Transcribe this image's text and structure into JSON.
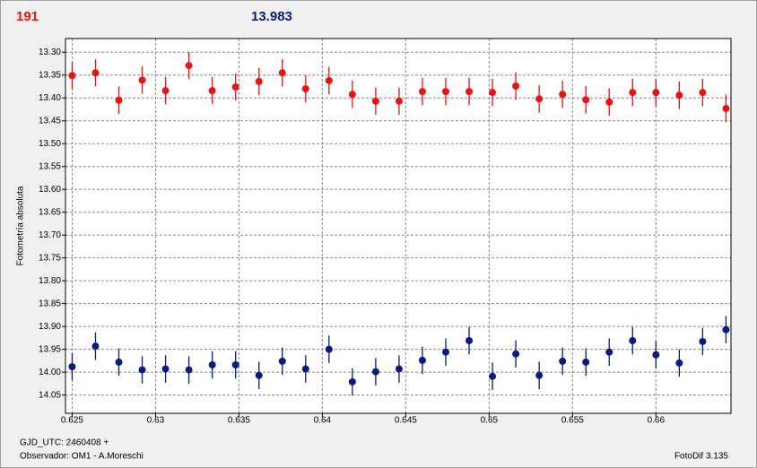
{
  "chart_data": {
    "type": "scatter",
    "header_left": "191",
    "header_left_color": "#ee1111",
    "header_right": "13.983",
    "header_right_color": "#0a1a80",
    "y_label": "Fotometría absoluta",
    "x_caption": "GJD_UTC: 2460408 +",
    "observer": "Observador: OM1 - A.Moreschi",
    "software": "FotoDif 3.135",
    "xlim": [
      0.6246,
      0.6645
    ],
    "ylim": [
      13.27,
      14.09
    ],
    "y_inverted": true,
    "grid": true,
    "xticks": [
      0.625,
      0.63,
      0.635,
      0.64,
      0.645,
      0.65,
      0.655,
      0.66
    ],
    "yticks": [
      {
        "value": 13.3,
        "label": "13.30"
      },
      {
        "value": 13.35,
        "label": "13.35"
      },
      {
        "value": 13.4,
        "label": "13.40"
      },
      {
        "value": 13.45,
        "label": "13.45"
      },
      {
        "value": 13.5,
        "label": "13.50"
      },
      {
        "value": 13.55,
        "label": "13.55"
      },
      {
        "value": 13.6,
        "label": "13.60"
      },
      {
        "value": 13.65,
        "label": "13.65"
      },
      {
        "value": 13.7,
        "label": "13.70"
      },
      {
        "value": 13.75,
        "label": "13.75"
      },
      {
        "value": 13.8,
        "label": "13.80"
      },
      {
        "value": 13.85,
        "label": "13.85"
      },
      {
        "value": 13.9,
        "label": "13.90"
      },
      {
        "value": 13.95,
        "label": "13.95"
      },
      {
        "value": 14.0,
        "label": "14.00"
      },
      {
        "value": 14.05,
        "label": "14.05"
      }
    ],
    "x": [
      0.625,
      0.6264,
      0.6278,
      0.6292,
      0.6306,
      0.632,
      0.6334,
      0.6348,
      0.6362,
      0.6376,
      0.639,
      0.6404,
      0.6418,
      0.6432,
      0.6446,
      0.646,
      0.6474,
      0.6488,
      0.6502,
      0.6516,
      0.653,
      0.6544,
      0.6558,
      0.6572,
      0.6586,
      0.66,
      0.6614,
      0.6628,
      0.6642
    ],
    "series": [
      {
        "color": "#ee1111",
        "values": [
          13.351,
          13.345,
          13.405,
          13.361,
          13.384,
          13.329,
          13.384,
          13.376,
          13.364,
          13.345,
          13.38,
          13.362,
          13.392,
          13.407,
          13.407,
          13.386,
          13.386,
          13.386,
          13.388,
          13.374,
          13.402,
          13.392,
          13.404,
          13.409,
          13.388,
          13.388,
          13.394,
          13.388,
          13.423
        ],
        "errors": [
          0.03,
          0.03,
          0.03,
          0.03,
          0.03,
          0.03,
          0.03,
          0.03,
          0.03,
          0.03,
          0.03,
          0.03,
          0.03,
          0.03,
          0.03,
          0.03,
          0.03,
          0.03,
          0.03,
          0.03,
          0.03,
          0.03,
          0.03,
          0.03,
          0.03,
          0.03,
          0.03,
          0.03,
          0.03
        ]
      },
      {
        "color": "#0a1a80",
        "values": [
          13.988,
          13.943,
          13.978,
          13.995,
          13.993,
          13.995,
          13.984,
          13.984,
          14.007,
          13.976,
          13.993,
          13.95,
          14.021,
          13.999,
          13.993,
          13.974,
          13.956,
          13.931,
          14.009,
          13.96,
          14.007,
          13.976,
          13.978,
          13.956,
          13.931,
          13.962,
          13.98,
          13.933,
          13.907
        ],
        "errors": [
          0.03,
          0.03,
          0.03,
          0.03,
          0.03,
          0.03,
          0.03,
          0.03,
          0.03,
          0.03,
          0.03,
          0.03,
          0.03,
          0.03,
          0.03,
          0.03,
          0.03,
          0.03,
          0.03,
          0.03,
          0.03,
          0.03,
          0.03,
          0.03,
          0.03,
          0.03,
          0.03,
          0.03,
          0.03
        ]
      }
    ]
  }
}
